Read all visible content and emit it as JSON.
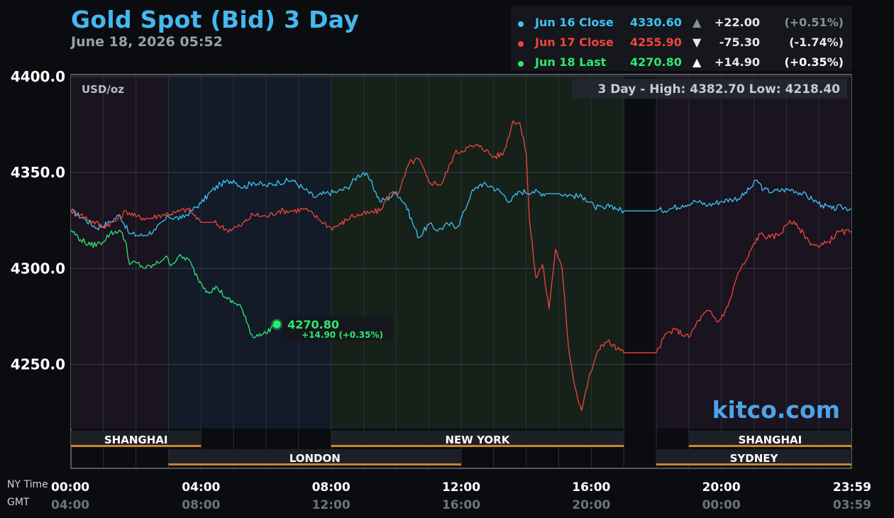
{
  "title": "Gold Spot (Bid) 3 Day",
  "timestamp": "June 18, 2026 05:52",
  "units": "USD/oz",
  "range_text": "3 Day - High: 4382.70  Low: 4218.40",
  "watermark": "kitco.com",
  "time_labels": {
    "ny": "NY Time",
    "gmt": "GMT"
  },
  "legend": [
    {
      "label": "Jun 16 Close",
      "value": "4330.60",
      "arrow": "▲",
      "change": "+22.00",
      "pct": "(+0.51%)",
      "color": "#3cc4f4",
      "arrow_color": "#8a8f96",
      "pct_color": "#8a8f96"
    },
    {
      "label": "Jun 17 Close",
      "value": "4255.90",
      "arrow": "▼",
      "change": "-75.30",
      "pct": "(-1.74%)",
      "color": "#f0453a",
      "arrow_color": "#e8e8e8",
      "pct_color": "#e8e8e8"
    },
    {
      "label": "Jun 18 Last",
      "value": "4270.80",
      "arrow": "▲",
      "change": "+14.90",
      "pct": "(+0.35%)",
      "color": "#2ee870",
      "arrow_color": "#ffffff",
      "pct_color": "#ffffff"
    }
  ],
  "last_callout": {
    "value": "4270.80",
    "change": "+14.90 (+0.35%)"
  },
  "sessions": [
    {
      "name": "SHANGHAI",
      "start": 0,
      "end": 4,
      "row": 0
    },
    {
      "name": "NEW YORK",
      "start": 8,
      "end": 17,
      "row": 0
    },
    {
      "name": "SHANGHAI",
      "start": 19,
      "end": 24,
      "row": 0
    },
    {
      "name": "LONDON",
      "start": 3,
      "end": 12,
      "row": 1
    },
    {
      "name": "SYDNEY",
      "start": 18,
      "end": 24,
      "row": 1
    }
  ],
  "chart_data": {
    "type": "line",
    "title": "Gold Spot (Bid) 3 Day",
    "ylabel": "USD/oz",
    "xlabel": "",
    "x_ticks_ny": [
      "00:00",
      "04:00",
      "08:00",
      "12:00",
      "16:00",
      "20:00",
      "23:59"
    ],
    "x_ticks_gmt": [
      "04:00",
      "08:00",
      "12:00",
      "16:00",
      "20:00",
      "00:00",
      "03:59"
    ],
    "x_tick_hours": [
      0,
      4,
      8,
      12,
      16,
      20,
      24
    ],
    "y_ticks": [
      "4400.0",
      "4350.0",
      "4300.0",
      "4250.0"
    ],
    "y_tick_values": [
      4400,
      4350,
      4300,
      4250
    ],
    "ylim": [
      4200,
      4400
    ],
    "xlim_hours": [
      0,
      24
    ],
    "grid": true,
    "legend_position": "top-right",
    "series": [
      {
        "name": "Jun 16 Close",
        "color": "#3cc4f4",
        "points": [
          [
            0,
            4330
          ],
          [
            0.4,
            4326
          ],
          [
            0.8,
            4321
          ],
          [
            1.2,
            4324
          ],
          [
            1.5,
            4328
          ],
          [
            1.8,
            4318
          ],
          [
            2.2,
            4317
          ],
          [
            2.6,
            4320
          ],
          [
            3.0,
            4327
          ],
          [
            3.4,
            4326
          ],
          [
            3.7,
            4330
          ],
          [
            4.0,
            4334
          ],
          [
            4.3,
            4340
          ],
          [
            4.6,
            4344
          ],
          [
            5.0,
            4346
          ],
          [
            5.3,
            4342
          ],
          [
            5.6,
            4345
          ],
          [
            6.0,
            4343
          ],
          [
            6.4,
            4345
          ],
          [
            6.8,
            4346
          ],
          [
            7.2,
            4341
          ],
          [
            7.5,
            4337
          ],
          [
            7.8,
            4339
          ],
          [
            8.2,
            4340
          ],
          [
            8.5,
            4342
          ],
          [
            8.8,
            4348
          ],
          [
            9.0,
            4350
          ],
          [
            9.2,
            4346
          ],
          [
            9.5,
            4335
          ],
          [
            9.8,
            4337
          ],
          [
            10.0,
            4340
          ],
          [
            10.3,
            4333
          ],
          [
            10.5,
            4324
          ],
          [
            10.7,
            4316
          ],
          [
            11.0,
            4323
          ],
          [
            11.3,
            4320
          ],
          [
            11.6,
            4323
          ],
          [
            11.9,
            4322
          ],
          [
            12.1,
            4330
          ],
          [
            12.3,
            4339
          ],
          [
            12.6,
            4344
          ],
          [
            12.9,
            4343
          ],
          [
            13.2,
            4340
          ],
          [
            13.5,
            4335
          ],
          [
            13.8,
            4340
          ],
          [
            14.2,
            4340
          ],
          [
            14.6,
            4339
          ],
          [
            15.0,
            4339
          ],
          [
            15.4,
            4338
          ],
          [
            15.8,
            4337
          ],
          [
            16.1,
            4332
          ],
          [
            16.4,
            4331
          ],
          [
            16.6,
            4333
          ],
          [
            16.8,
            4331
          ],
          [
            17.0,
            4330
          ],
          [
            17.5,
            4330
          ],
          [
            18.0,
            4330
          ],
          [
            18.4,
            4331
          ],
          [
            18.8,
            4333
          ],
          [
            19.2,
            4335
          ],
          [
            19.6,
            4333
          ],
          [
            20.0,
            4335
          ],
          [
            20.3,
            4336
          ],
          [
            20.6,
            4337
          ],
          [
            20.9,
            4342
          ],
          [
            21.1,
            4346
          ],
          [
            21.3,
            4341
          ],
          [
            21.6,
            4340
          ],
          [
            21.9,
            4341
          ],
          [
            22.2,
            4341
          ],
          [
            22.5,
            4339
          ],
          [
            22.8,
            4336
          ],
          [
            23.1,
            4333
          ],
          [
            23.4,
            4331
          ],
          [
            23.7,
            4332
          ],
          [
            24,
            4331
          ]
        ]
      },
      {
        "name": "Jun 17 Close",
        "color": "#f0453a",
        "points": [
          [
            0,
            4330
          ],
          [
            0.3,
            4328
          ],
          [
            0.6,
            4325
          ],
          [
            1.0,
            4322
          ],
          [
            1.4,
            4325
          ],
          [
            1.7,
            4330
          ],
          [
            2.0,
            4327
          ],
          [
            2.4,
            4326
          ],
          [
            2.8,
            4328
          ],
          [
            3.2,
            4329
          ],
          [
            3.6,
            4331
          ],
          [
            4.0,
            4324
          ],
          [
            4.4,
            4324
          ],
          [
            4.8,
            4320
          ],
          [
            5.2,
            4322
          ],
          [
            5.6,
            4328
          ],
          [
            6.0,
            4327
          ],
          [
            6.4,
            4330
          ],
          [
            6.8,
            4330
          ],
          [
            7.2,
            4331
          ],
          [
            7.6,
            4326
          ],
          [
            8.0,
            4321
          ],
          [
            8.3,
            4323
          ],
          [
            8.6,
            4327
          ],
          [
            8.9,
            4328
          ],
          [
            9.2,
            4329
          ],
          [
            9.5,
            4330
          ],
          [
            9.8,
            4339
          ],
          [
            10.1,
            4340
          ],
          [
            10.4,
            4355
          ],
          [
            10.7,
            4357
          ],
          [
            11.0,
            4345
          ],
          [
            11.4,
            4344
          ],
          [
            11.8,
            4360
          ],
          [
            12.2,
            4363
          ],
          [
            12.6,
            4364
          ],
          [
            13.0,
            4358
          ],
          [
            13.3,
            4360
          ],
          [
            13.6,
            4377
          ],
          [
            13.8,
            4376
          ],
          [
            14.0,
            4360
          ],
          [
            14.1,
            4325
          ],
          [
            14.3,
            4295
          ],
          [
            14.5,
            4302
          ],
          [
            14.7,
            4279
          ],
          [
            14.9,
            4310
          ],
          [
            15.1,
            4300
          ],
          [
            15.3,
            4259
          ],
          [
            15.5,
            4238
          ],
          [
            15.7,
            4226
          ],
          [
            15.9,
            4241
          ],
          [
            16.1,
            4252
          ],
          [
            16.3,
            4260
          ],
          [
            16.5,
            4262
          ],
          [
            16.8,
            4258
          ],
          [
            17.0,
            4256
          ],
          [
            17.5,
            4256
          ],
          [
            18.0,
            4256
          ],
          [
            18.3,
            4266
          ],
          [
            18.6,
            4268
          ],
          [
            19.0,
            4264
          ],
          [
            19.3,
            4273
          ],
          [
            19.6,
            4278
          ],
          [
            19.9,
            4272
          ],
          [
            20.2,
            4280
          ],
          [
            20.5,
            4297
          ],
          [
            20.8,
            4305
          ],
          [
            21.0,
            4313
          ],
          [
            21.2,
            4318
          ],
          [
            21.5,
            4316
          ],
          [
            21.8,
            4318
          ],
          [
            22.1,
            4325
          ],
          [
            22.4,
            4321
          ],
          [
            22.7,
            4314
          ],
          [
            23.0,
            4311
          ],
          [
            23.3,
            4314
          ],
          [
            23.6,
            4319
          ],
          [
            24,
            4319
          ]
        ]
      },
      {
        "name": "Jun 18 Last",
        "color": "#2ee870",
        "points": [
          [
            0,
            4320
          ],
          [
            0.3,
            4315
          ],
          [
            0.6,
            4312
          ],
          [
            0.9,
            4313
          ],
          [
            1.2,
            4318
          ],
          [
            1.5,
            4320
          ],
          [
            1.7,
            4313
          ],
          [
            1.8,
            4302
          ],
          [
            2.0,
            4303
          ],
          [
            2.3,
            4300
          ],
          [
            2.6,
            4302
          ],
          [
            2.9,
            4306
          ],
          [
            3.1,
            4302
          ],
          [
            3.3,
            4306
          ],
          [
            3.6,
            4305
          ],
          [
            3.9,
            4295
          ],
          [
            4.2,
            4288
          ],
          [
            4.5,
            4290
          ],
          [
            4.8,
            4284
          ],
          [
            5.0,
            4282
          ],
          [
            5.2,
            4281
          ],
          [
            5.4,
            4272
          ],
          [
            5.6,
            4264
          ],
          [
            5.8,
            4266
          ],
          [
            6.0,
            4266
          ],
          [
            6.2,
            4270
          ],
          [
            6.33,
            4270.8
          ]
        ]
      }
    ]
  }
}
